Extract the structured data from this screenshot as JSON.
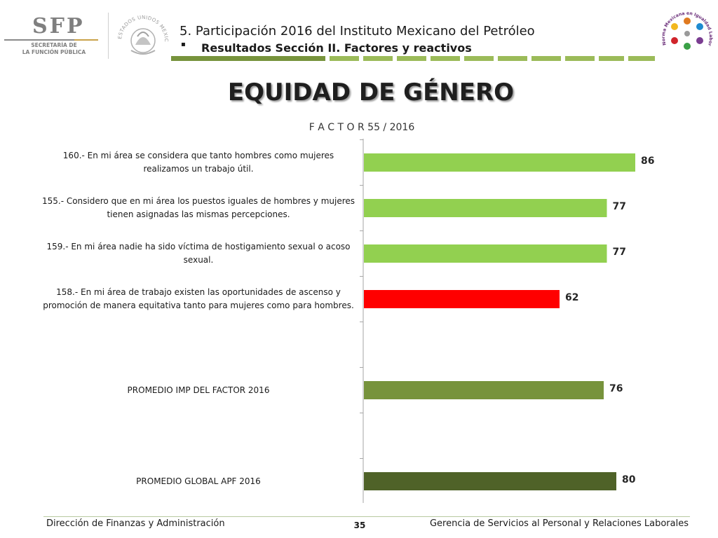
{
  "header": {
    "logo_sfp": {
      "word": "SFP",
      "line1": "SECRETARÍA DE",
      "line2": "LA FUNCIÓN PÚBLICA"
    },
    "seal": {
      "text": "ESTADOS UNIDOS MEXICANOS"
    },
    "title": "5. Participación 2016 del Instituto Mexicano del Petróleo",
    "bullet": "▪",
    "subtitle": "Resultados Sección II. Factores y reactivos",
    "norma_logo": {
      "text": "Norma Mexicana en Igualdad Laboral y No Discriminación"
    }
  },
  "main_title": "EQUIDAD DE GÉNERO",
  "chart_data": {
    "type": "bar",
    "orientation": "horizontal",
    "title": "F A C T O R   55 /   2016",
    "xlim": [
      0,
      100
    ],
    "grid": false,
    "legend": "none",
    "categories": [
      "160.- En mi área se considera que tanto hombres como mujeres realizamos un trabajo útil.",
      "155.- Considero que en mi área los puestos iguales de hombres y mujeres tienen asignadas las mismas percepciones.",
      "159.- En mi área nadie ha sido víctima de hostigamiento sexual o acoso sexual.",
      "158.- En mi área de trabajo existen las oportunidades de ascenso y promoción de manera equitativa tanto para mujeres como para hombres.",
      "",
      "PROMEDIO IMP DEL FACTOR   2016",
      "",
      "PROMEDIO GLOBAL APF   2016"
    ],
    "values": [
      86,
      77,
      77,
      62,
      null,
      76,
      null,
      80
    ],
    "labels": [
      "86",
      "77",
      "77",
      "62",
      "",
      "76",
      "",
      "80"
    ],
    "colors": [
      "#92d050",
      "#92d050",
      "#92d050",
      "#ff0000",
      "",
      "#77933c",
      "",
      "#4f6228"
    ]
  },
  "footer": {
    "left": "Dirección de Finanzas y Administración",
    "page": "35",
    "right": "Gerencia de Servicios al Personal y Relaciones Laborales"
  },
  "colors": {
    "strip": "#77933c",
    "axis": "#a6a6a6"
  }
}
